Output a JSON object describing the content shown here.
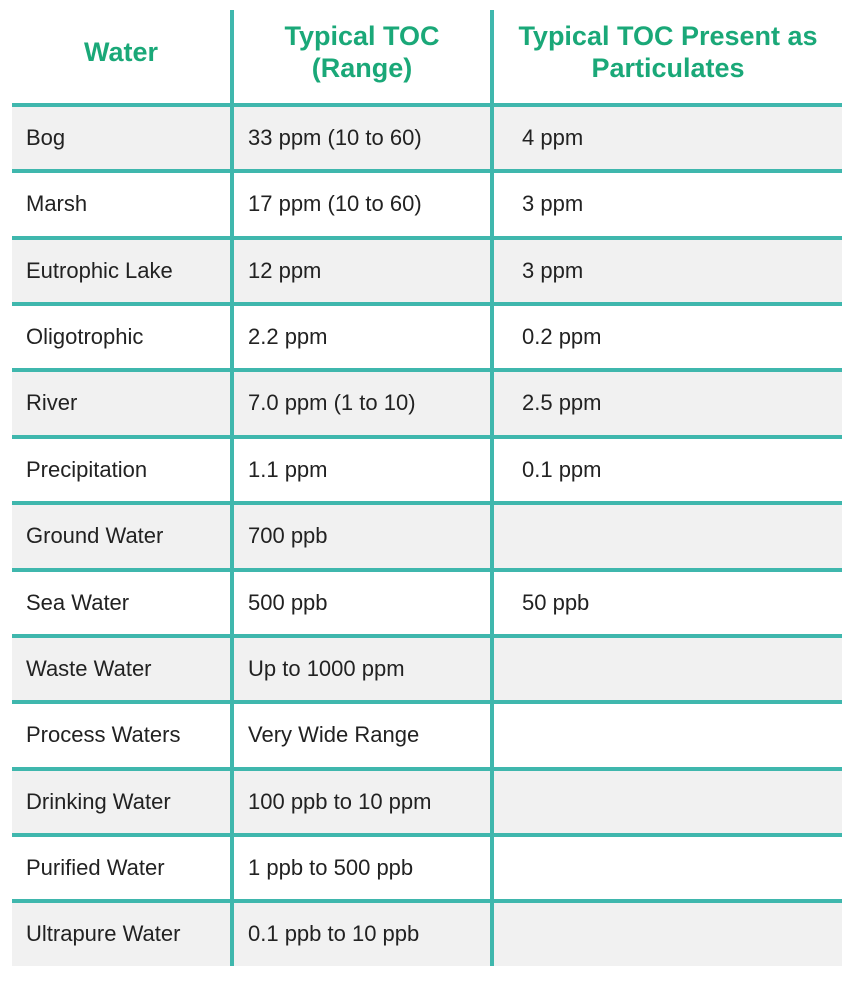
{
  "table": {
    "header_color": "#1aa878",
    "rule_color": "#3fb7ad",
    "row_alt_bg": "#f1f1f1",
    "row_bg": "#ffffff",
    "header_fontsize": 27,
    "cell_fontsize": 22,
    "columns": [
      {
        "label": "Water"
      },
      {
        "label": "Typical TOC (Range)"
      },
      {
        "label": "Typical TOC Present as Particulates"
      }
    ],
    "rows": [
      {
        "water": "Bog",
        "toc": "33 ppm (10 to 60)",
        "part": "4 ppm"
      },
      {
        "water": "Marsh",
        "toc": "17 ppm (10 to 60)",
        "part": "3 ppm"
      },
      {
        "water": "Eutrophic Lake",
        "toc": "12 ppm",
        "part": "3 ppm"
      },
      {
        "water": "Oligotrophic",
        "toc": "2.2 ppm",
        "part": "0.2 ppm"
      },
      {
        "water": "River",
        "toc": "7.0 ppm (1 to 10)",
        "part": "2.5 ppm"
      },
      {
        "water": "Precipitation",
        "toc": "1.1 ppm",
        "part": "0.1 ppm"
      },
      {
        "water": "Ground Water",
        "toc": "700 ppb",
        "part": ""
      },
      {
        "water": "Sea Water",
        "toc": "500 ppb",
        "part": " 50 ppb"
      },
      {
        "water": "Waste Water",
        "toc": "Up to 1000 ppm",
        "part": ""
      },
      {
        "water": "Process Waters",
        "toc": "Very Wide Range",
        "part": ""
      },
      {
        "water": "Drinking Water",
        "toc": "100 ppb to 10 ppm",
        "part": ""
      },
      {
        "water": "Purified Water",
        "toc": "1 ppb to 500 ppb",
        "part": ""
      },
      {
        "water": "Ultrapure Water",
        "toc": "0.1 ppb to 10 ppb",
        "part": ""
      }
    ]
  }
}
